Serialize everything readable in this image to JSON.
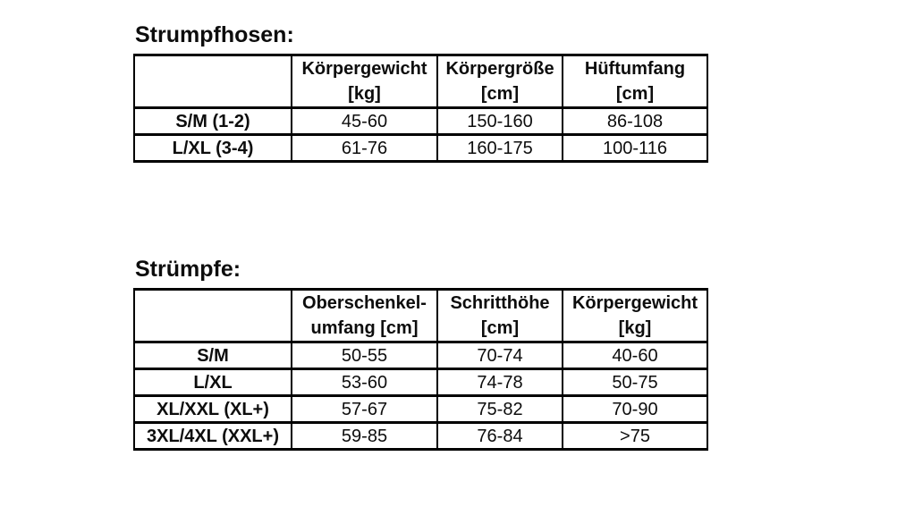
{
  "page": {
    "background_color": "#ffffff",
    "text_color": "#0d0d0d",
    "border_color": "#000000"
  },
  "tables": [
    {
      "title": "Strumpfhosen:",
      "headers": [
        "",
        "Körpergewicht\n[kg]",
        "Körpergröße\n[cm]",
        "Hüftumfang\n[cm]"
      ],
      "rows": [
        [
          "S/M (1-2)",
          "45-60",
          "150-160",
          "86-108"
        ],
        [
          "L/XL (3-4)",
          "61-76",
          "160-175",
          "100-116"
        ]
      ]
    },
    {
      "title": "Strümpfe:",
      "headers": [
        "",
        "Oberschenkel-\numfang [cm]",
        "Schritthöhe\n[cm]",
        "Körpergewicht\n[kg]"
      ],
      "rows": [
        [
          "S/M",
          "50-55",
          "70-74",
          "40-60"
        ],
        [
          "L/XL",
          "53-60",
          "74-78",
          "50-75"
        ],
        [
          "XL/XXL (XL+)",
          "57-67",
          "75-82",
          "70-90"
        ],
        [
          "3XL/4XL (XXL+)",
          "59-85",
          "76-84",
          ">75"
        ]
      ]
    }
  ]
}
